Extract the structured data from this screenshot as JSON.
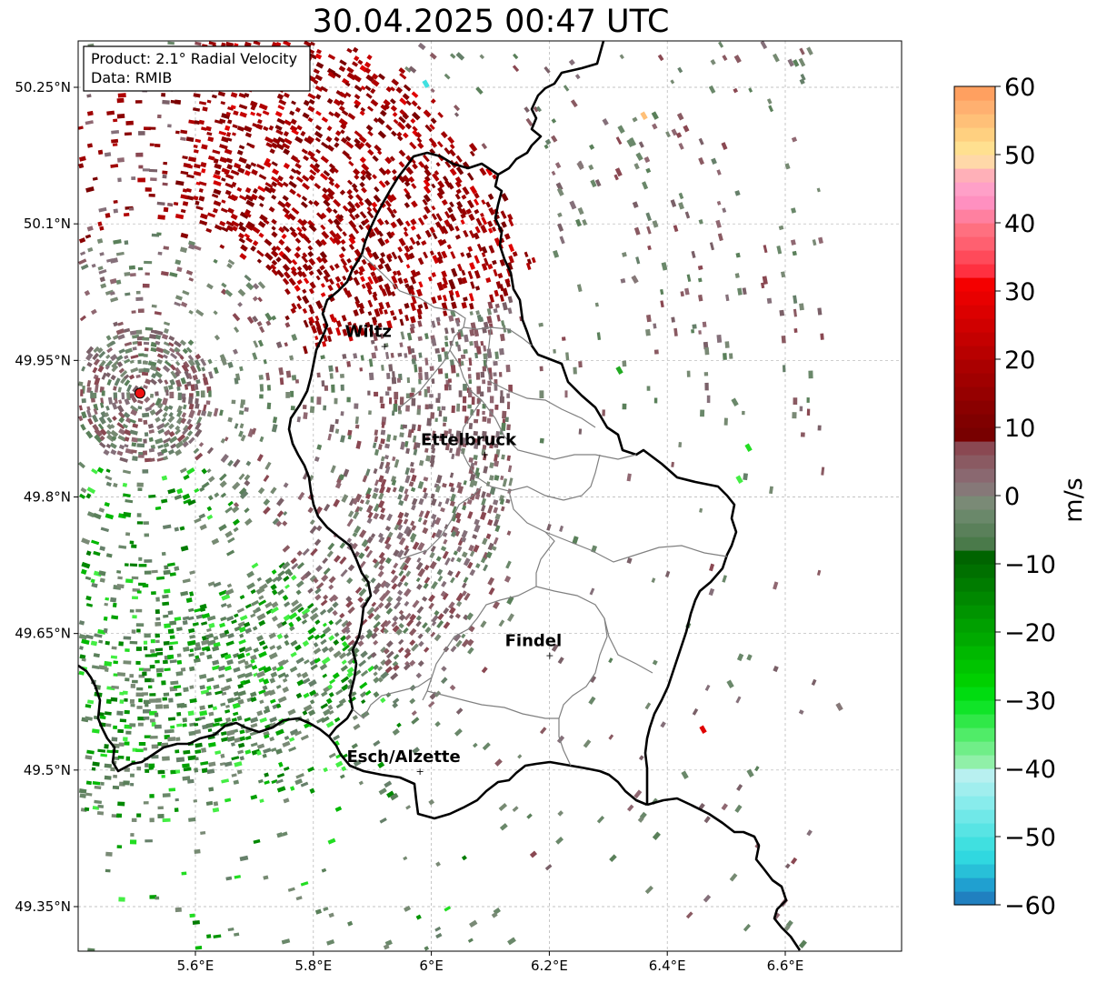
{
  "title": "30.04.2025 00:47 UTC",
  "info_box": {
    "product": "Product: 2.1° Radial Velocity",
    "data_source": "Data: RMIB"
  },
  "map": {
    "lon_range": [
      5.4,
      6.8
    ],
    "lat_range": [
      49.3,
      50.3
    ],
    "lon_ticks": [
      {
        "value": 5.6,
        "label": "5.6°E"
      },
      {
        "value": 5.8,
        "label": "5.8°E"
      },
      {
        "value": 6.0,
        "label": "6°E"
      },
      {
        "value": 6.2,
        "label": "6.2°E"
      },
      {
        "value": 6.4,
        "label": "6.4°E"
      },
      {
        "value": 6.6,
        "label": "6.6°E"
      }
    ],
    "lat_ticks": [
      {
        "value": 50.25,
        "label": "50.25°N"
      },
      {
        "value": 50.1,
        "label": "50.1°N"
      },
      {
        "value": 49.95,
        "label": "49.95°N"
      },
      {
        "value": 49.8,
        "label": "49.8°N"
      },
      {
        "value": 49.65,
        "label": "49.65°N"
      },
      {
        "value": 49.5,
        "label": "49.5°N"
      },
      {
        "value": 49.35,
        "label": "49.35°N"
      }
    ],
    "radar_site": {
      "lon": 5.506,
      "lat": 49.914,
      "color": "#ee1111"
    },
    "cities": [
      {
        "name": "Wiltz",
        "lon": 5.93,
        "lat": 49.966
      },
      {
        "name": "Ettelbruck",
        "lon": 6.1,
        "lat": 49.847
      },
      {
        "name": "Findel",
        "lon": 6.21,
        "lat": 49.626
      },
      {
        "name": "Esch/Alzette",
        "lon": 5.99,
        "lat": 49.499
      }
    ],
    "grid": true
  },
  "colorbar": {
    "label": "m/s",
    "vmin": -60,
    "vmax": 60,
    "ticks": [
      {
        "value": 60,
        "label": "60"
      },
      {
        "value": 50,
        "label": "50"
      },
      {
        "value": 40,
        "label": "40"
      },
      {
        "value": 30,
        "label": "30"
      },
      {
        "value": 20,
        "label": "20"
      },
      {
        "value": 10,
        "label": "10"
      },
      {
        "value": 0,
        "label": "0"
      },
      {
        "value": -10,
        "label": "−10"
      },
      {
        "value": -20,
        "label": "−20"
      },
      {
        "value": -30,
        "label": "−30"
      },
      {
        "value": -40,
        "label": "−40"
      },
      {
        "value": -50,
        "label": "−50"
      },
      {
        "value": -60,
        "label": "−60"
      }
    ],
    "colors": [
      "#2080c0",
      "#20a0d0",
      "#28c0d8",
      "#30d8e0",
      "#40e0e0",
      "#58e4e4",
      "#70e8e8",
      "#88ecec",
      "#a0eeee",
      "#b8f0f0",
      "#90f0a8",
      "#70ee88",
      "#50ec68",
      "#30e848",
      "#10e428",
      "#00dc10",
      "#00d000",
      "#00c400",
      "#00b800",
      "#00aa00",
      "#00a000",
      "#009400",
      "#008800",
      "#007c00",
      "#007000",
      "#006400",
      "#4a7a4a",
      "#5a805a",
      "#6a886a",
      "#7a8a76",
      "#867878",
      "#8a6870",
      "#8a5a62",
      "#8a4852",
      "#780000",
      "#800000",
      "#8a0000",
      "#960000",
      "#a00000",
      "#aa0000",
      "#b80000",
      "#c40000",
      "#d00000",
      "#dc0000",
      "#e80000",
      "#f40000",
      "#ff3040",
      "#ff4a5a",
      "#ff6070",
      "#ff7080",
      "#ff80a0",
      "#ff90c0",
      "#ffa0c8",
      "#ffb0b8",
      "#ffd8a8",
      "#ffe090",
      "#ffd080",
      "#ffc078",
      "#ffb070",
      "#ffa060"
    ]
  }
}
